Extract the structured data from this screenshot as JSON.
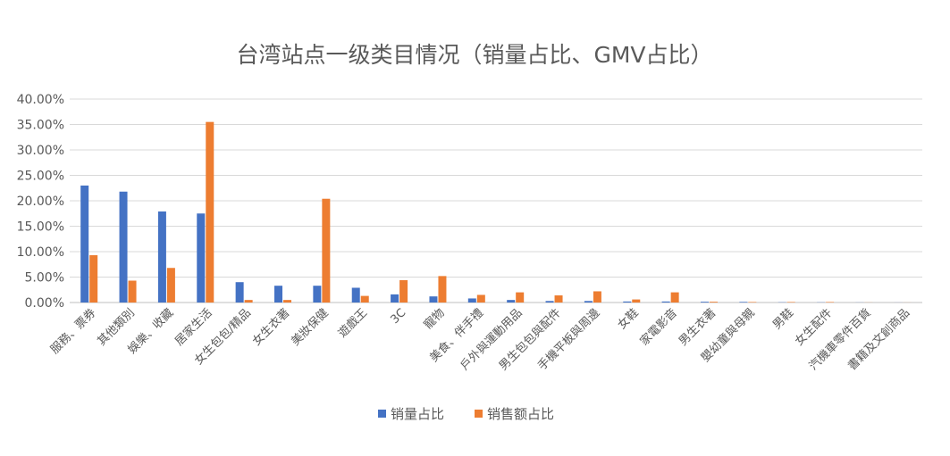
{
  "chart_data": {
    "type": "bar",
    "title": "台湾站点一级类目情况（销量占比、GMV占比）",
    "xlabel": "",
    "ylabel": "",
    "ylim": [
      0,
      40
    ],
    "y_ticks": [
      "0.00%",
      "5.00%",
      "10.00%",
      "15.00%",
      "20.00%",
      "25.00%",
      "30.00%",
      "35.00%",
      "40.00%"
    ],
    "grid": true,
    "legend_position": "bottom",
    "categories": [
      "服務、票券",
      "其他類別",
      "娛樂、收藏",
      "居家生活",
      "女生包包/精品",
      "女生衣著",
      "美妝保健",
      "遊戲王",
      "3C",
      "寵物",
      "美食、伴手禮",
      "戶外與運動用品",
      "男生包包與配件",
      "手機平板與周邊",
      "女鞋",
      "家電影音",
      "男生衣著",
      "嬰幼童與母親",
      "男鞋",
      "女生配件",
      "汽機車零件百貨",
      "書籍及文創商品"
    ],
    "series": [
      {
        "name": "销量占比",
        "color": "#4472C4",
        "values": [
          23.0,
          21.8,
          17.9,
          17.5,
          4.0,
          3.3,
          3.3,
          2.9,
          1.6,
          1.2,
          0.8,
          0.5,
          0.3,
          0.3,
          0.2,
          0.2,
          0.15,
          0.12,
          0.05,
          0.04,
          0.02,
          0.01
        ]
      },
      {
        "name": "销售额占比",
        "color": "#ED7D31",
        "values": [
          9.3,
          4.3,
          6.8,
          35.5,
          0.5,
          0.5,
          20.4,
          1.3,
          4.4,
          5.2,
          1.5,
          2.0,
          1.4,
          2.2,
          0.6,
          2.0,
          0.15,
          0.1,
          0.1,
          0.1,
          0.02,
          0.01
        ]
      }
    ]
  }
}
